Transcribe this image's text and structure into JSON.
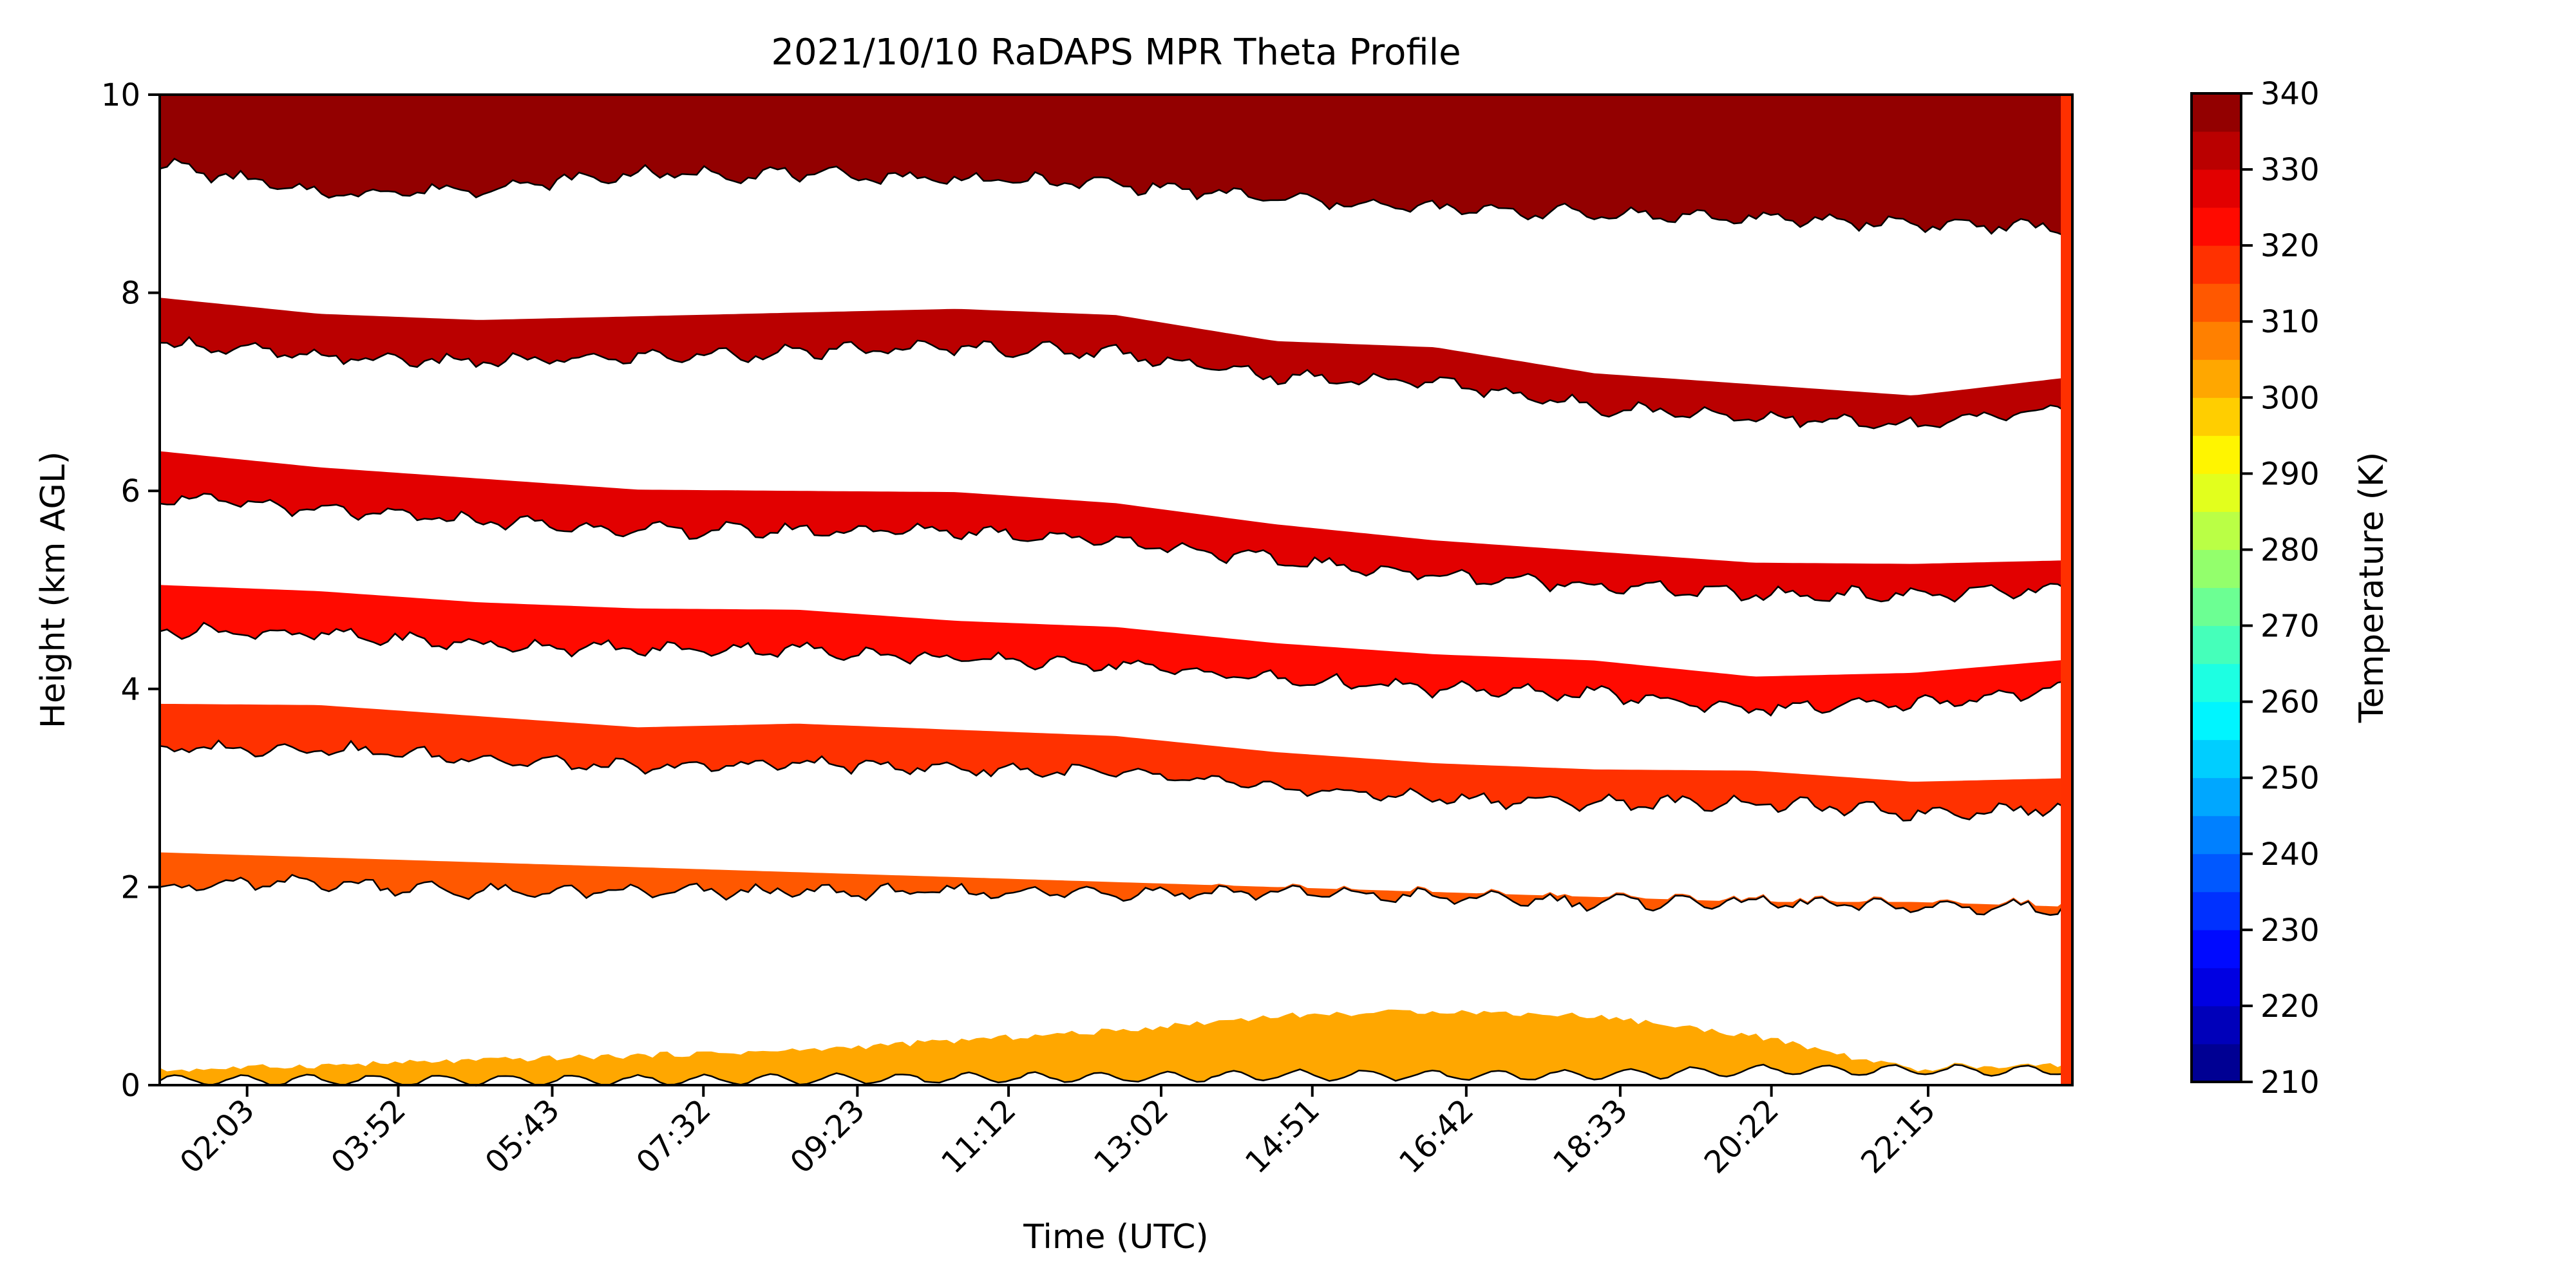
{
  "chart_data": {
    "type": "heatmap",
    "subtype": "filled-contour",
    "title": "2021/10/10 RaDAPS MPR Theta Profile",
    "xlabel": "Time (UTC)",
    "ylabel": "Height (km AGL)",
    "xlim": [
      "01:00",
      "23:59"
    ],
    "ylim": [
      0,
      10
    ],
    "x_tick_labels": [
      "02:03",
      "03:52",
      "05:43",
      "07:32",
      "09:23",
      "11:12",
      "13:02",
      "14:51",
      "16:42",
      "18:33",
      "20:22",
      "22:15"
    ],
    "y_ticks": [
      0,
      2,
      4,
      6,
      8,
      10
    ],
    "colorbar": {
      "label": "Temperature (K)",
      "min": 210,
      "max": 340,
      "step": 5,
      "ticks": [
        210,
        220,
        230,
        240,
        250,
        260,
        270,
        280,
        290,
        300,
        310,
        320,
        330,
        340
      ],
      "colormap": "jet"
    },
    "filled_bands": [
      {
        "level_k": [
          300,
          305
        ],
        "lower_km": [
          0.05,
          0.05,
          0.05,
          0.05,
          0.06,
          0.07,
          0.08,
          0.1,
          0.1,
          0.1,
          0.15,
          0.15,
          0.15
        ],
        "upper_km": [
          0.15,
          0.2,
          0.25,
          0.3,
          0.35,
          0.45,
          0.55,
          0.7,
          0.75,
          0.7,
          0.5,
          0.15,
          0.2
        ]
      },
      {
        "level_k": [
          310,
          315
        ],
        "lower_km": [
          2.0,
          2.05,
          1.95,
          1.95,
          1.95,
          1.95,
          1.95,
          1.95,
          1.9,
          1.85,
          1.85,
          1.8,
          1.8
        ],
        "upper_km": [
          2.35,
          2.3,
          2.25,
          2.2,
          2.15,
          2.1,
          2.05,
          2.0,
          1.95,
          1.9,
          1.85,
          1.85,
          1.8
        ]
      },
      {
        "level_k": [
          315,
          320
        ],
        "lower_km": [
          3.4,
          3.4,
          3.3,
          3.2,
          3.25,
          3.2,
          3.15,
          3.0,
          2.9,
          2.85,
          2.85,
          2.75,
          2.8
        ]
      },
      {
        "level_k": [
          320,
          325
        ],
        "lower_km": [
          4.6,
          4.55,
          4.45,
          4.4,
          4.4,
          4.3,
          4.25,
          4.1,
          4.0,
          3.95,
          3.8,
          3.85,
          4.0
        ]
      },
      {
        "level_k": [
          325,
          330
        ],
        "lower_km": [
          5.95,
          5.8,
          5.7,
          5.6,
          5.6,
          5.6,
          5.5,
          5.3,
          5.15,
          5.05,
          4.95,
          4.95,
          5.0
        ]
      },
      {
        "level_k": [
          330,
          335
        ],
        "lower_km": [
          7.5,
          7.35,
          7.3,
          7.35,
          7.4,
          7.45,
          7.4,
          7.15,
          7.1,
          6.85,
          6.75,
          6.65,
          6.85
        ]
      },
      {
        "level_k": [
          335,
          340
        ],
        "lower_km": [
          9.3,
          9.0,
          9.05,
          9.2,
          9.2,
          9.15,
          9.1,
          8.95,
          8.85,
          8.8,
          8.75,
          8.7,
          8.65
        ]
      }
    ]
  }
}
